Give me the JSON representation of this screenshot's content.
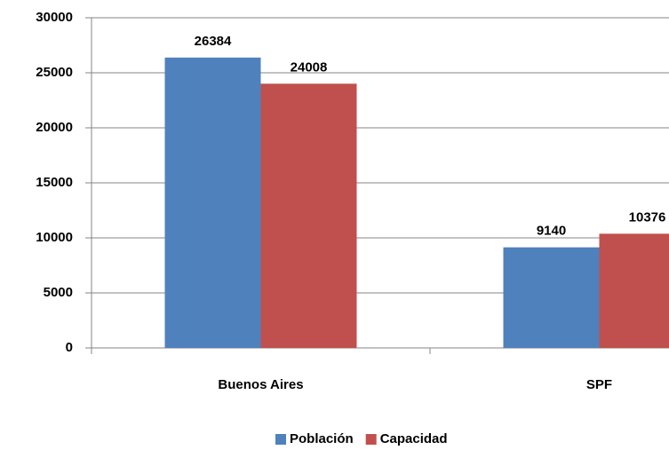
{
  "chart_data": {
    "type": "bar",
    "categories": [
      "Buenos Aires",
      "SPF"
    ],
    "series": [
      {
        "name": "Población",
        "color": "#4f81bd",
        "values": [
          26384,
          9140
        ]
      },
      {
        "name": "Capacidad",
        "color": "#c0504d",
        "values": [
          24008,
          10376
        ]
      }
    ],
    "ylim": [
      0,
      30000
    ],
    "yticks": [
      0,
      5000,
      10000,
      15000,
      20000,
      25000,
      30000
    ],
    "grid": true,
    "legend": "bottom"
  }
}
